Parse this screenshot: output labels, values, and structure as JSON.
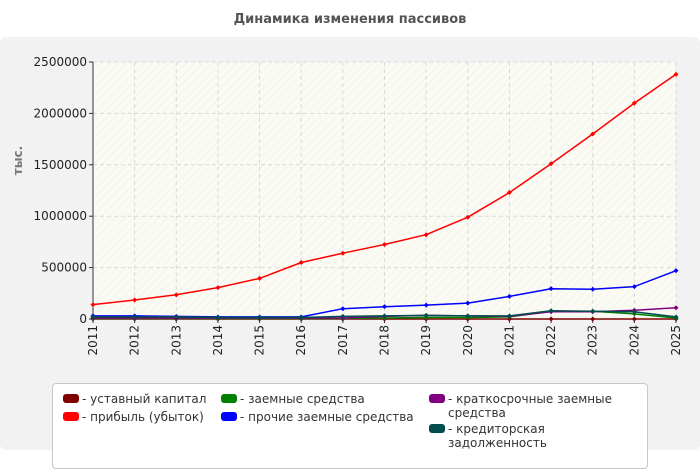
{
  "chart_data": {
    "type": "line",
    "title": "Динамика изменения пассивов",
    "ylabel": "тыс.",
    "xlabel": "",
    "x": [
      "2011",
      "2012",
      "2013",
      "2014",
      "2015",
      "2016",
      "2017",
      "2018",
      "2019",
      "2020",
      "2021",
      "2022",
      "2023",
      "2024",
      "2025"
    ],
    "ylim": [
      0,
      2500000
    ],
    "yticks": [
      0,
      500000,
      1000000,
      1500000,
      2000000,
      2500000
    ],
    "grid": true,
    "legend_position": "bottom",
    "series": [
      {
        "name": "- уставный капитал",
        "color": "#800000",
        "values": [
          10,
          10,
          10,
          10,
          10,
          10,
          10,
          10,
          10,
          10,
          10,
          10,
          10,
          10,
          10
        ]
      },
      {
        "name": "- прибыль (убыток)",
        "color": "#ff0000",
        "values": [
          140000,
          185000,
          235000,
          305000,
          395000,
          550000,
          640000,
          725000,
          820000,
          990000,
          1230000,
          1510000,
          1800000,
          2100000,
          2380000
        ]
      },
      {
        "name": "- заемные средства",
        "color": "#008000",
        "values": [
          5000,
          5000,
          5000,
          5000,
          5000,
          5000,
          5000,
          10000,
          15000,
          15000,
          20000,
          75000,
          75000,
          50000,
          10000
        ]
      },
      {
        "name": "- прочие заемные средства",
        "color": "#0000ff",
        "values": [
          30000,
          30000,
          25000,
          20000,
          20000,
          20000,
          100000,
          120000,
          135000,
          155000,
          220000,
          295000,
          290000,
          315000,
          470000
        ]
      },
      {
        "name": "- краткосрочные заемные средства",
        "color": "#800080",
        "values": [
          10000,
          10000,
          10000,
          10000,
          10000,
          10000,
          10000,
          25000,
          35000,
          30000,
          25000,
          70000,
          70000,
          85000,
          110000
        ]
      },
      {
        "name": "- кредиторская задолженность",
        "color": "#004d4d",
        "values": [
          20000,
          20000,
          20000,
          15000,
          15000,
          15000,
          25000,
          30000,
          35000,
          30000,
          30000,
          80000,
          75000,
          70000,
          20000
        ]
      }
    ]
  }
}
